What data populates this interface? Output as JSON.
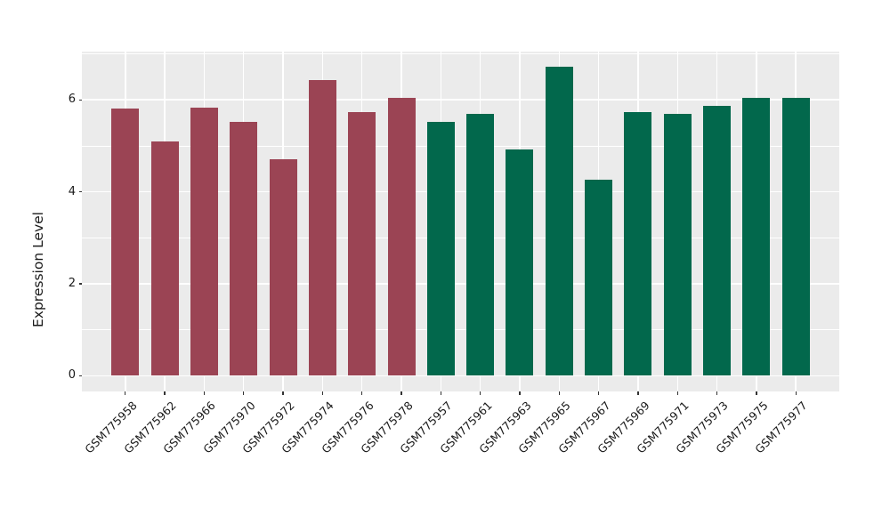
{
  "chart_data": {
    "type": "bar",
    "title": "",
    "xlabel": "",
    "ylabel": "Expression Level",
    "ylim": [
      0,
      7.05
    ],
    "ytick_labels": [
      "0",
      "2",
      "4",
      "6"
    ],
    "ytick_values": [
      0,
      2,
      4,
      6
    ],
    "yminor_values": [
      1,
      3,
      5,
      7
    ],
    "grid": "on",
    "legend_position": "none",
    "panel_bg_color": "#EBEBEB",
    "grid_color": "#FFFFFF",
    "text_color": "#1a1a1a",
    "group_colors": {
      "groupA": "#9B4454",
      "groupB": "#02684C"
    },
    "categories": [
      "GSM775958",
      "GSM775962",
      "GSM775966",
      "GSM775970",
      "GSM775972",
      "GSM775974",
      "GSM775976",
      "GSM775978",
      "GSM775957",
      "GSM775961",
      "GSM775963",
      "GSM775965",
      "GSM775967",
      "GSM775969",
      "GSM775971",
      "GSM775973",
      "GSM775975",
      "GSM775977"
    ],
    "values": [
      5.81,
      5.1,
      5.83,
      5.53,
      4.7,
      6.43,
      5.74,
      6.05,
      5.52,
      5.69,
      4.93,
      6.72,
      4.27,
      5.74,
      5.69,
      5.87,
      6.04,
      6.04
    ],
    "bar_groups": [
      "groupA",
      "groupA",
      "groupA",
      "groupA",
      "groupA",
      "groupA",
      "groupA",
      "groupA",
      "groupB",
      "groupB",
      "groupB",
      "groupB",
      "groupB",
      "groupB",
      "groupB",
      "groupB",
      "groupB",
      "groupB"
    ],
    "series": [
      {
        "name": "groupA",
        "color": "#9B4454",
        "categories": [
          "GSM775958",
          "GSM775962",
          "GSM775966",
          "GSM775970",
          "GSM775972",
          "GSM775974",
          "GSM775976",
          "GSM775978"
        ],
        "values": [
          5.81,
          5.1,
          5.83,
          5.53,
          4.7,
          6.43,
          5.74,
          6.05
        ]
      },
      {
        "name": "groupB",
        "color": "#02684C",
        "categories": [
          "GSM775957",
          "GSM775961",
          "GSM775963",
          "GSM775965",
          "GSM775967",
          "GSM775969",
          "GSM775971",
          "GSM775973",
          "GSM775975",
          "GSM775977"
        ],
        "values": [
          5.52,
          5.69,
          4.93,
          6.72,
          4.27,
          5.74,
          5.69,
          5.87,
          6.04,
          6.04
        ]
      }
    ]
  }
}
